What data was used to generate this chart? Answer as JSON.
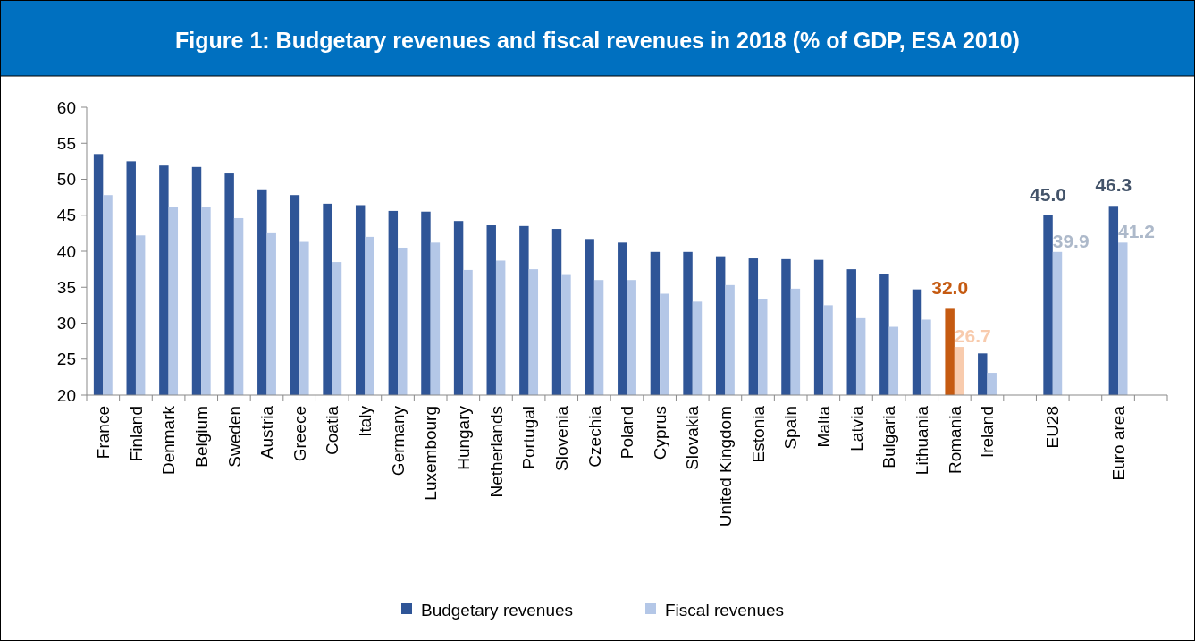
{
  "chart_data": {
    "type": "bar",
    "title": "Figure 1: Budgetary revenues and fiscal revenues in 2018 (% of GDP, ESA 2010)",
    "categories": [
      "France",
      "Finland",
      "Denmark",
      "Belgium",
      "Sweden",
      "Austria",
      "Greece",
      "Coatia",
      "Italy",
      "Germany",
      "Luxembourg",
      "Hungary",
      "Netherlands",
      "Portugal",
      "Slovenia",
      "Czechia",
      "Poland",
      "Cyprus",
      "Slovakia",
      "United Kingdom",
      "Estonia",
      "Spain",
      "Malta",
      "Latvia",
      "Bulgaria",
      "Lithuania",
      "Romania",
      "Ireland",
      null,
      "EU28",
      null,
      "Euro area",
      null
    ],
    "series": [
      {
        "name": "Budgetary revenues",
        "color": "#2f5597",
        "colors": [
          "#2f5597",
          "#2f5597",
          "#2f5597",
          "#2f5597",
          "#2f5597",
          "#2f5597",
          "#2f5597",
          "#2f5597",
          "#2f5597",
          "#2f5597",
          "#2f5597",
          "#2f5597",
          "#2f5597",
          "#2f5597",
          "#2f5597",
          "#2f5597",
          "#2f5597",
          "#2f5597",
          "#2f5597",
          "#2f5597",
          "#2f5597",
          "#2f5597",
          "#2f5597",
          "#2f5597",
          "#2f5597",
          "#2f5597",
          "#c55a11",
          "#2f5597",
          "#2f5597",
          "#2f5597",
          "#2f5597",
          "#2f5597",
          "#2f5597"
        ],
        "values": [
          53.5,
          52.5,
          51.9,
          51.7,
          50.8,
          48.6,
          47.8,
          46.6,
          46.4,
          45.6,
          45.5,
          44.2,
          43.6,
          43.5,
          43.1,
          41.7,
          41.2,
          39.9,
          39.9,
          39.3,
          39.0,
          38.9,
          38.8,
          37.5,
          36.8,
          34.7,
          32.0,
          25.8,
          null,
          45.0,
          null,
          46.3,
          null
        ],
        "value_labels": [
          null,
          null,
          null,
          null,
          null,
          null,
          null,
          null,
          null,
          null,
          null,
          null,
          null,
          null,
          null,
          null,
          null,
          null,
          null,
          null,
          null,
          null,
          null,
          null,
          null,
          null,
          "32.0",
          null,
          null,
          "45.0",
          null,
          "46.3",
          null
        ]
      },
      {
        "name": "Fiscal revenues",
        "color": "#b4c7e7",
        "colors": [
          "#b4c7e7",
          "#b4c7e7",
          "#b4c7e7",
          "#b4c7e7",
          "#b4c7e7",
          "#b4c7e7",
          "#b4c7e7",
          "#b4c7e7",
          "#b4c7e7",
          "#b4c7e7",
          "#b4c7e7",
          "#b4c7e7",
          "#b4c7e7",
          "#b4c7e7",
          "#b4c7e7",
          "#b4c7e7",
          "#b4c7e7",
          "#b4c7e7",
          "#b4c7e7",
          "#b4c7e7",
          "#b4c7e7",
          "#b4c7e7",
          "#b4c7e7",
          "#b4c7e7",
          "#b4c7e7",
          "#b4c7e7",
          "#f8cbad",
          "#b4c7e7",
          "#b4c7e7",
          "#b4c7e7",
          "#b4c7e7",
          "#b4c7e7",
          "#b4c7e7"
        ],
        "values": [
          47.8,
          42.2,
          46.1,
          46.1,
          44.6,
          42.5,
          41.3,
          38.5,
          42.0,
          40.5,
          41.2,
          37.4,
          38.7,
          37.5,
          36.7,
          36.0,
          36.0,
          34.1,
          33.0,
          35.3,
          33.3,
          34.8,
          32.5,
          30.7,
          29.5,
          30.5,
          26.7,
          23.1,
          null,
          39.9,
          null,
          41.2,
          null
        ],
        "value_labels": [
          null,
          null,
          null,
          null,
          null,
          null,
          null,
          null,
          null,
          null,
          null,
          null,
          null,
          null,
          null,
          null,
          null,
          null,
          null,
          null,
          null,
          null,
          null,
          null,
          null,
          null,
          "26.7",
          null,
          null,
          "39.9",
          null,
          "41.2",
          null
        ]
      }
    ],
    "ylim": [
      20,
      60
    ],
    "yticks": [
      20,
      25,
      30,
      35,
      40,
      45,
      50,
      55,
      60
    ],
    "legend": "bottom"
  }
}
